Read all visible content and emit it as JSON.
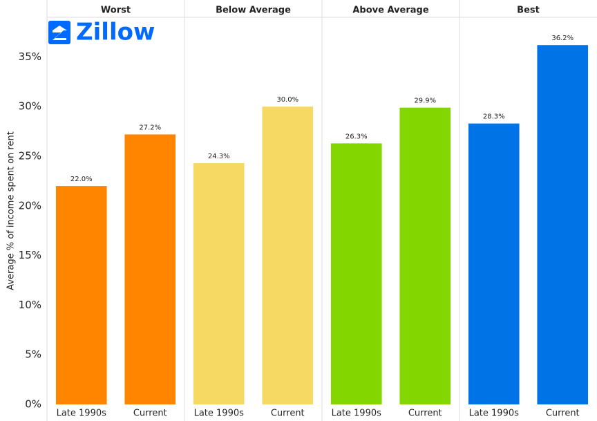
{
  "chart_data": {
    "type": "bar",
    "logo": "Zillow",
    "y_label": "Average % of income spent on rent",
    "categories": [
      "Late 1990s",
      "Current"
    ],
    "ylim": [
      0,
      39
    ],
    "yticks": [
      {
        "value": 0,
        "label": "0%"
      },
      {
        "value": 5,
        "label": "5%"
      },
      {
        "value": 10,
        "label": "10%"
      },
      {
        "value": 15,
        "label": "15%"
      },
      {
        "value": 20,
        "label": "20%"
      },
      {
        "value": 25,
        "label": "25%"
      },
      {
        "value": 30,
        "label": "30%"
      },
      {
        "value": 35,
        "label": "35%"
      }
    ],
    "panels": [
      {
        "title": "Worst",
        "color": "#ff8400",
        "values": [
          22.0,
          27.2
        ],
        "value_labels": [
          "22.0%",
          "27.2%"
        ]
      },
      {
        "title": "Below Average",
        "color": "#f5d963",
        "values": [
          24.3,
          30.0
        ],
        "value_labels": [
          "24.3%",
          "30.0%"
        ]
      },
      {
        "title": "Above Average",
        "color": "#84d600",
        "values": [
          26.3,
          29.9
        ],
        "value_labels": [
          "26.3%",
          "29.9%"
        ]
      },
      {
        "title": "Best",
        "color": "#0073e6",
        "values": [
          28.3,
          36.2
        ],
        "value_labels": [
          "28.3%",
          "36.2%"
        ]
      }
    ]
  }
}
